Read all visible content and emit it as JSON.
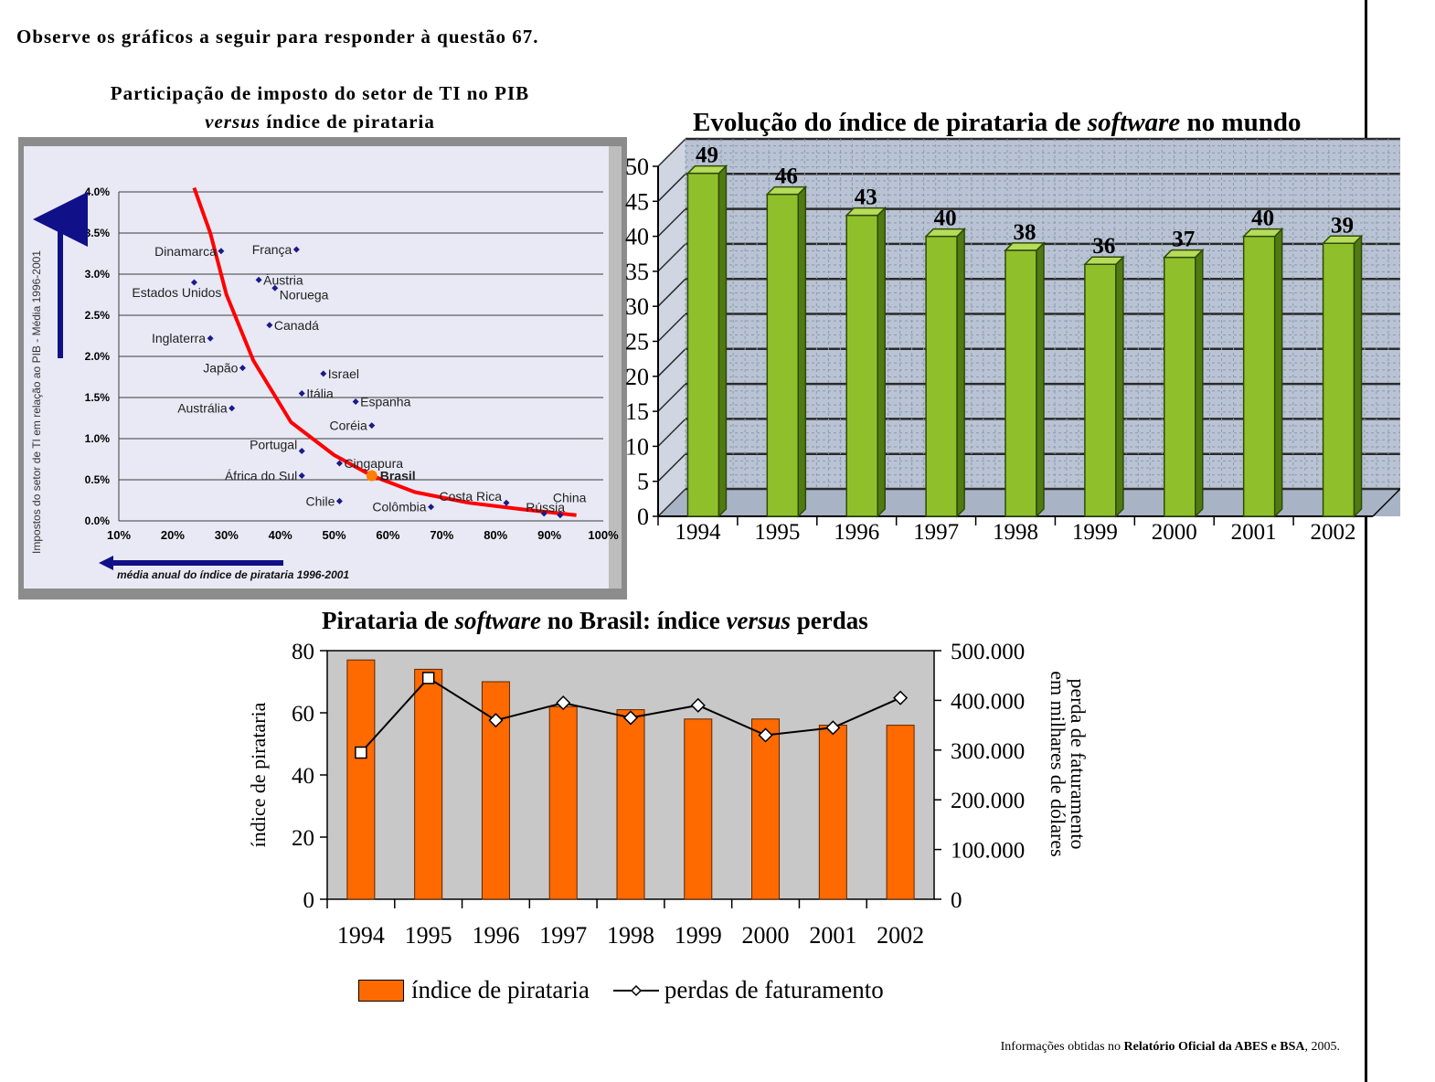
{
  "intro": "Observe os gráficos a seguir para responder à questão 67.",
  "source": {
    "prefix": "Informações obtidas no ",
    "bold": "Relatório Oficial da ABES e BSA",
    "suffix": ", 2005."
  },
  "colors": {
    "red_curve": "#ff0000",
    "point": "#1a1a8a",
    "brazil": "#ff8000",
    "green_bar": "#8ab82a",
    "orange_bar": "#ff6a00",
    "arrow": "#101088"
  },
  "chart_data": [
    {
      "type": "scatter",
      "title_line1": "Participação de imposto do setor de TI no PIB",
      "title_line2_italic": "versus",
      "title_line2_rest": " índice de pirataria",
      "ylabel": "Impostos do setor de TI em relação ao PIB - Média 1996-2001",
      "xlabel": "média anual do índice de pirataria 1996-2001",
      "x_ticks": [
        "10%",
        "20%",
        "30%",
        "40%",
        "50%",
        "60%",
        "70%",
        "80%",
        "90%",
        "100%"
      ],
      "y_ticks": [
        "0.0%",
        "0.5%",
        "1.0%",
        "1.5%",
        "2.0%",
        "2.5%",
        "3.0%",
        "3.5%",
        "4.0%"
      ],
      "xlim": [
        10,
        100
      ],
      "ylim": [
        0,
        4.0
      ],
      "grid": true,
      "points": [
        {
          "name": "Dinamarca",
          "x": 29,
          "y": 3.28
        },
        {
          "name": "França",
          "x": 43,
          "y": 3.3
        },
        {
          "name": "Estados Unidos",
          "x": 24,
          "y": 2.9
        },
        {
          "name": "Áustria",
          "x": 36,
          "y": 2.93
        },
        {
          "name": "Noruega",
          "x": 39,
          "y": 2.83
        },
        {
          "name": "Canadá",
          "x": 38,
          "y": 2.38
        },
        {
          "name": "Inglaterra",
          "x": 27,
          "y": 2.22
        },
        {
          "name": "Japão",
          "x": 33,
          "y": 1.86
        },
        {
          "name": "Israel",
          "x": 48,
          "y": 1.79
        },
        {
          "name": "Itália",
          "x": 44,
          "y": 1.55
        },
        {
          "name": "Espanha",
          "x": 54,
          "y": 1.45
        },
        {
          "name": "Austrália",
          "x": 31,
          "y": 1.37
        },
        {
          "name": "Coréia",
          "x": 57,
          "y": 1.16
        },
        {
          "name": "Portugal",
          "x": 44,
          "y": 0.85
        },
        {
          "name": "Cingapura",
          "x": 51,
          "y": 0.7
        },
        {
          "name": "África do Sul",
          "x": 44,
          "y": 0.55
        },
        {
          "name": "Brasil",
          "x": 57,
          "y": 0.55,
          "highlight": true
        },
        {
          "name": "Chile",
          "x": 51,
          "y": 0.24
        },
        {
          "name": "Colômbia",
          "x": 68,
          "y": 0.17
        },
        {
          "name": "Costa Rica",
          "x": 82,
          "y": 0.22
        },
        {
          "name": "Rússia",
          "x": 89,
          "y": 0.09
        },
        {
          "name": "China",
          "x": 92,
          "y": 0.07
        }
      ],
      "trend": [
        [
          24,
          4.05
        ],
        [
          27,
          3.5
        ],
        [
          30,
          2.75
        ],
        [
          35,
          1.95
        ],
        [
          42,
          1.2
        ],
        [
          50,
          0.8
        ],
        [
          57,
          0.55
        ],
        [
          65,
          0.35
        ],
        [
          75,
          0.22
        ],
        [
          85,
          0.14
        ],
        [
          95,
          0.07
        ]
      ]
    },
    {
      "type": "bar",
      "title_pre": "Evolução do índice de pirataria de ",
      "title_italic": "software",
      "title_post": " no mundo",
      "categories": [
        "1994",
        "1995",
        "1996",
        "1997",
        "1998",
        "1999",
        "2000",
        "2001",
        "2002"
      ],
      "values": [
        49,
        46,
        43,
        40,
        38,
        36,
        37,
        40,
        39
      ],
      "y_ticks": [
        "0",
        "5",
        "10",
        "15",
        "20",
        "25",
        "30",
        "35",
        "40",
        "45",
        "50"
      ],
      "ylim": [
        0,
        50
      ],
      "grid": true
    },
    {
      "type": "bar",
      "title_pre": "Pirataria de ",
      "title_italic1": "software",
      "title_mid": " no Brasil: índice ",
      "title_italic2": "versus",
      "title_post": " perdas",
      "categories": [
        "1994",
        "1995",
        "1996",
        "1997",
        "1998",
        "1999",
        "2000",
        "2001",
        "2002"
      ],
      "series": [
        {
          "name": "índice de pirataria",
          "type": "bar",
          "axis": "left",
          "values": [
            77,
            74,
            70,
            62,
            61,
            58,
            58,
            56,
            56
          ]
        },
        {
          "name": "perdas de faturamento",
          "type": "line",
          "axis": "right",
          "values": [
            295000,
            445000,
            360000,
            395000,
            365000,
            390000,
            330000,
            345000,
            405000
          ]
        }
      ],
      "ylabel": "índice de pirataria",
      "y2label_line1": "perda de faturamento",
      "y2label_line2": "em milhares de dólares",
      "y_ticks": [
        "0",
        "20",
        "40",
        "60",
        "80"
      ],
      "y2_ticks": [
        "0",
        "100.000",
        "200.000",
        "300.000",
        "400.000",
        "500.000"
      ],
      "ylim": [
        0,
        80
      ],
      "y2lim": [
        0,
        500000
      ],
      "legend_position": "bottom"
    }
  ]
}
